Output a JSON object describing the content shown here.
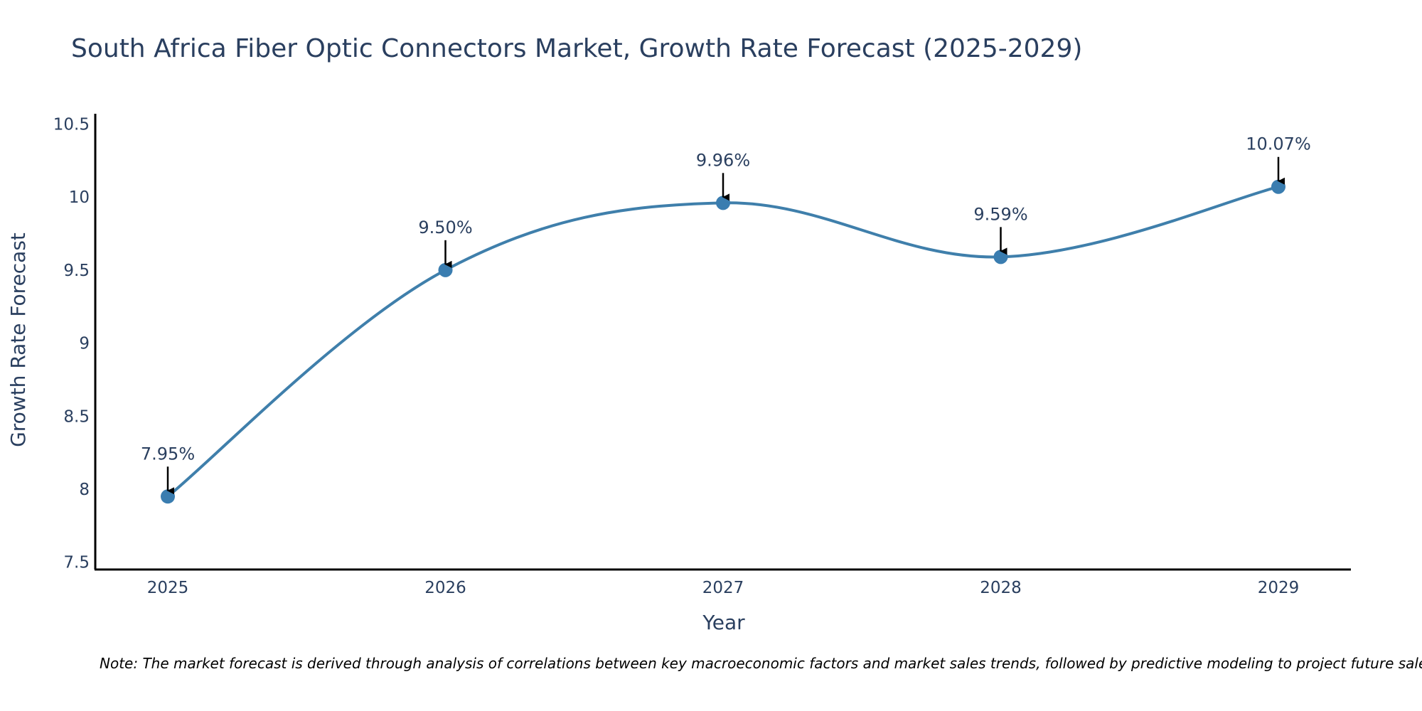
{
  "chart_data": {
    "type": "line",
    "title": "South Africa Fiber Optic Connectors Market, Growth Rate Forecast (2025-2029)",
    "xlabel": "Year",
    "ylabel": "Growth Rate Forecast",
    "categories": [
      "2025",
      "2026",
      "2027",
      "2028",
      "2029"
    ],
    "values": [
      7.95,
      9.5,
      9.96,
      9.59,
      10.07
    ],
    "data_labels": [
      "7.95%",
      "9.50%",
      "9.96%",
      "9.59%",
      "10.07%"
    ],
    "ylim": [
      7.45,
      10.57
    ],
    "yticks": [
      7.5,
      8,
      8.5,
      9,
      9.5,
      10,
      10.5
    ],
    "ytick_labels": [
      "7.5",
      "8",
      "8.5",
      "9",
      "9.5",
      "10",
      "10.5"
    ],
    "grid": false,
    "line_color": "#3f7fab",
    "marker_color": "#3a7db0",
    "note": "Note: The market forecast is derived through analysis of correlations between key macroeconomic factors and market sales trends, followed by predictive modeling to project future sales."
  }
}
